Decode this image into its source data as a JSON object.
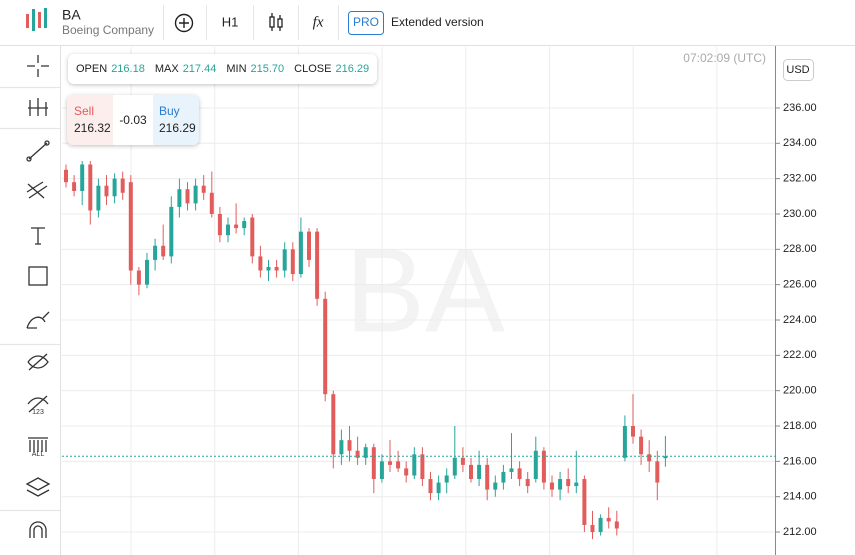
{
  "header": {
    "symbol": "BA",
    "company": "Boeing Company",
    "interval": "H1",
    "formula": "fx",
    "pro": "PRO",
    "extended": "Extended version"
  },
  "ohlc": [
    {
      "label": "OPEN",
      "value": "216.18"
    },
    {
      "label": "MAX",
      "value": "217.44"
    },
    {
      "label": "MIN",
      "value": "215.70"
    },
    {
      "label": "CLOSE",
      "value": "216.29"
    }
  ],
  "trade": {
    "sell_label": "Sell",
    "sell": "216.32",
    "spread": "-0.03",
    "buy_label": "Buy",
    "buy": "216.29"
  },
  "time": "07:02:09 (UTC)",
  "currency": "USD",
  "watermark": "BA",
  "toolbar": {
    "all": "ALL",
    "n123": "123"
  },
  "chart_data": {
    "type": "candlestick",
    "up_color": "#26a69a",
    "down_color": "#e25c5c",
    "current_price": 216.29,
    "grid": true,
    "ylim": [
      210.7,
      239.45
    ],
    "yticks": [
      {
        "value": 212,
        "label": "212.00"
      },
      {
        "value": 214,
        "label": "214.00"
      },
      {
        "value": 216,
        "label": "216.00"
      },
      {
        "value": 218,
        "label": "218.00"
      },
      {
        "value": 220,
        "label": "220.00"
      },
      {
        "value": 222,
        "label": "222.00"
      },
      {
        "value": 224,
        "label": "224.00"
      },
      {
        "value": 226,
        "label": "226.00"
      },
      {
        "value": 228,
        "label": "228.00"
      },
      {
        "value": 230,
        "label": "230.00"
      },
      {
        "value": 232,
        "label": "232.00"
      },
      {
        "value": 234,
        "label": "234.00"
      },
      {
        "value": 236,
        "label": "236.00"
      }
    ],
    "ohlc": [
      [
        232.5,
        232.8,
        231.5,
        231.8
      ],
      [
        231.8,
        232.2,
        231.0,
        231.3
      ],
      [
        231.3,
        233.0,
        230.5,
        232.8
      ],
      [
        232.8,
        233.0,
        229.4,
        230.2
      ],
      [
        230.2,
        232.0,
        229.8,
        231.6
      ],
      [
        231.6,
        232.2,
        230.5,
        231.0
      ],
      [
        231.0,
        232.3,
        230.6,
        232.0
      ],
      [
        232.0,
        232.4,
        230.8,
        231.2
      ],
      [
        231.8,
        232.2,
        226.0,
        226.8
      ],
      [
        226.8,
        227.0,
        225.4,
        226.0
      ],
      [
        226.0,
        227.8,
        225.8,
        227.4
      ],
      [
        227.4,
        228.6,
        226.8,
        228.2
      ],
      [
        228.2,
        229.4,
        227.4,
        227.6
      ],
      [
        227.6,
        231.0,
        227.2,
        230.4
      ],
      [
        230.4,
        232.0,
        229.8,
        231.4
      ],
      [
        231.4,
        231.8,
        230.2,
        230.6
      ],
      [
        230.6,
        232.0,
        230.2,
        231.6
      ],
      [
        231.6,
        232.2,
        230.8,
        231.2
      ],
      [
        231.2,
        232.4,
        229.8,
        230.0
      ],
      [
        230.0,
        230.4,
        228.4,
        228.8
      ],
      [
        228.8,
        229.8,
        228.4,
        229.4
      ],
      [
        229.4,
        230.6,
        228.9,
        229.2
      ],
      [
        229.2,
        229.8,
        228.8,
        229.6
      ],
      [
        229.8,
        230.0,
        227.2,
        227.6
      ],
      [
        227.6,
        228.2,
        226.4,
        226.8
      ],
      [
        226.8,
        227.4,
        226.2,
        227.0
      ],
      [
        227.0,
        227.4,
        226.4,
        226.8
      ],
      [
        226.8,
        228.4,
        226.4,
        228.0
      ],
      [
        228.0,
        228.4,
        226.2,
        226.6
      ],
      [
        226.6,
        229.8,
        226.4,
        229.0
      ],
      [
        229.0,
        229.2,
        227.0,
        227.4
      ],
      [
        229.0,
        229.2,
        224.8,
        225.2
      ],
      [
        225.2,
        225.6,
        219.4,
        219.8
      ],
      [
        219.8,
        220.0,
        215.6,
        216.4
      ],
      [
        216.4,
        217.8,
        215.8,
        217.2
      ],
      [
        217.2,
        218.0,
        216.0,
        216.6
      ],
      [
        216.6,
        217.4,
        215.8,
        216.2
      ],
      [
        216.2,
        217.0,
        215.8,
        216.8
      ],
      [
        216.8,
        217.0,
        214.2,
        215.0
      ],
      [
        215.0,
        216.4,
        214.8,
        216.0
      ],
      [
        216.0,
        217.2,
        215.4,
        215.8
      ],
      [
        216.0,
        216.6,
        215.4,
        215.6
      ],
      [
        215.6,
        216.0,
        214.8,
        215.2
      ],
      [
        215.2,
        216.8,
        215.0,
        216.4
      ],
      [
        216.4,
        216.8,
        214.6,
        215.0
      ],
      [
        215.0,
        215.4,
        213.8,
        214.2
      ],
      [
        214.2,
        215.2,
        213.8,
        214.8
      ],
      [
        214.8,
        215.6,
        214.2,
        215.2
      ],
      [
        215.2,
        218.0,
        215.0,
        216.2
      ],
      [
        216.2,
        216.8,
        215.4,
        215.8
      ],
      [
        215.8,
        216.2,
        214.8,
        215.0
      ],
      [
        215.0,
        216.6,
        214.6,
        215.8
      ],
      [
        215.8,
        216.2,
        213.8,
        214.4
      ],
      [
        214.4,
        215.2,
        214.0,
        214.8
      ],
      [
        214.8,
        215.8,
        214.4,
        215.4
      ],
      [
        215.4,
        217.6,
        215.0,
        215.6
      ],
      [
        215.6,
        216.0,
        214.6,
        215.0
      ],
      [
        215.0,
        215.4,
        214.2,
        214.6
      ],
      [
        215.0,
        217.4,
        214.8,
        216.6
      ],
      [
        216.6,
        216.8,
        214.4,
        214.8
      ],
      [
        214.8,
        215.2,
        214.0,
        214.4
      ],
      [
        214.4,
        215.4,
        213.8,
        215.0
      ],
      [
        215.0,
        215.6,
        214.2,
        214.6
      ],
      [
        214.6,
        216.6,
        214.2,
        214.8
      ],
      [
        215.0,
        215.2,
        212.0,
        212.4
      ],
      [
        212.4,
        213.2,
        211.6,
        212.0
      ],
      [
        212.0,
        213.0,
        211.8,
        212.8
      ],
      [
        212.8,
        213.4,
        212.2,
        212.6
      ],
      [
        212.6,
        213.2,
        211.8,
        212.2
      ],
      [
        216.2,
        218.6,
        216.0,
        218.0
      ],
      [
        218.0,
        219.8,
        217.0,
        217.4
      ],
      [
        217.4,
        217.8,
        215.8,
        216.4
      ],
      [
        216.4,
        217.2,
        215.4,
        216.0
      ],
      [
        216.0,
        216.6,
        213.8,
        214.8
      ],
      [
        216.18,
        217.44,
        215.7,
        216.29
      ]
    ]
  }
}
